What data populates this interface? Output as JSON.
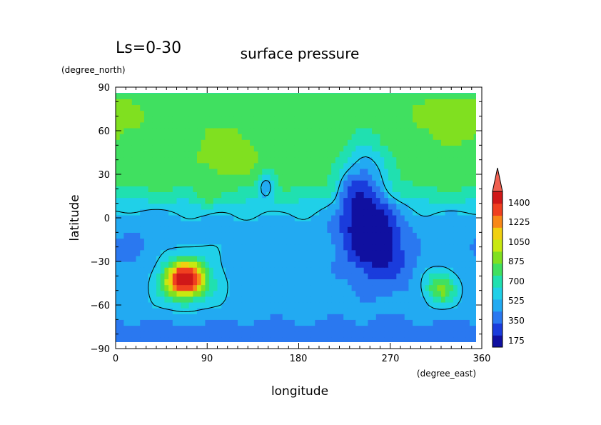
{
  "chart_data": {
    "type": "heatmap",
    "title": "surface pressure",
    "period_label": "Ls=0-30",
    "xlabel": "longitude",
    "ylabel": "latitude",
    "x_units": "(degree_east)",
    "y_units": "(degree_north)",
    "xlim": [
      0,
      360
    ],
    "ylim": [
      -90,
      90
    ],
    "x_ticks": [
      0,
      90,
      180,
      270,
      360
    ],
    "y_ticks": [
      -90,
      -60,
      -30,
      0,
      30,
      60,
      90
    ],
    "x_tick_labels": [
      "0",
      "90",
      "180",
      "270",
      "360"
    ],
    "y_tick_labels": [
      "−90",
      "−60",
      "−30",
      "0",
      "30",
      "60",
      "90"
    ],
    "colorbar": {
      "labels": [
        "175",
        "350",
        "525",
        "700",
        "875",
        "1050",
        "1225",
        "1400"
      ],
      "values": [
        175,
        350,
        525,
        700,
        875,
        1050,
        1225,
        1400
      ],
      "min": 87.5,
      "max": 1487.5,
      "extend": "max"
    },
    "contour_level": 525,
    "features": [
      {
        "lon": 70,
        "lat": -42,
        "value": 1300
      },
      {
        "lon": 248,
        "lat": -8,
        "value": 250
      },
      {
        "lon": 320,
        "lat": -48,
        "value": 820
      },
      {
        "lon": 110,
        "lat": 45,
        "value": 850
      },
      {
        "lon": 345,
        "lat": 68,
        "value": 900
      }
    ]
  },
  "colors": {
    "palette": [
      "#1010a0",
      "#1a3cdc",
      "#2a78f0",
      "#22aaf2",
      "#20d0e8",
      "#20e0b0",
      "#40e060",
      "#80e020",
      "#c8e810",
      "#f0d010",
      "#f88818",
      "#f04020",
      "#d01818"
    ]
  }
}
